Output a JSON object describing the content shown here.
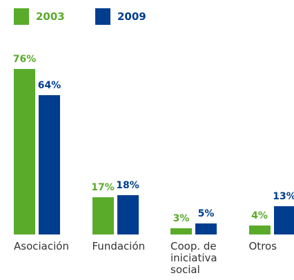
{
  "chart_data": {
    "type": "bar",
    "categories": [
      "Asociación",
      "Fundación",
      "Coop. de iniciativa social",
      "Otros"
    ],
    "series": [
      {
        "name": "2003",
        "color": "#5aab2a",
        "values": [
          76,
          17,
          3,
          4
        ],
        "value_labels": [
          "76%",
          "17%",
          "3%",
          "4%"
        ]
      },
      {
        "name": "2009",
        "color": "#003d8f",
        "values": [
          64,
          18,
          5,
          13
        ],
        "value_labels": [
          "64%",
          "18%",
          "5%",
          "13%"
        ]
      }
    ],
    "legend": "top-left"
  }
}
